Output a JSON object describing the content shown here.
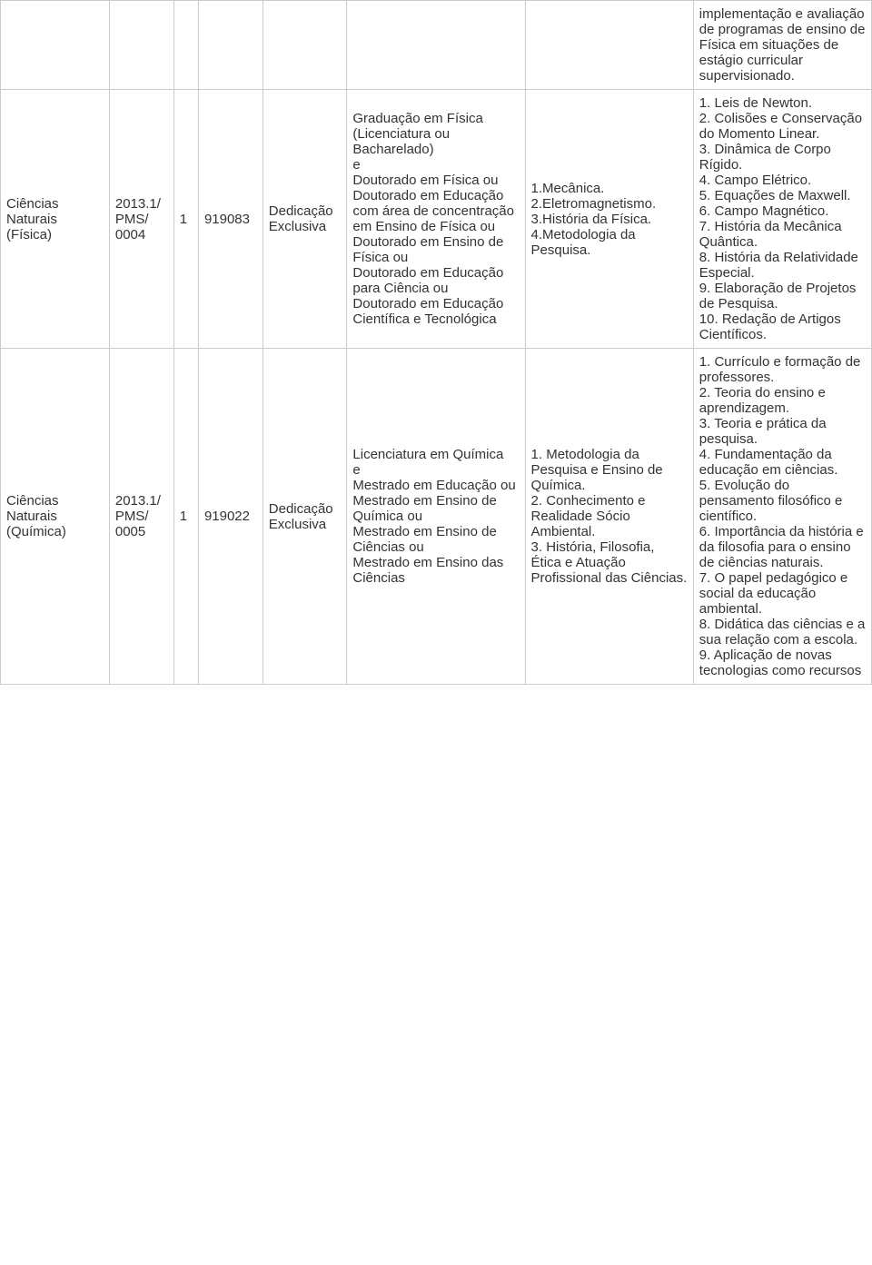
{
  "rows": [
    {
      "c0": "",
      "c1": "",
      "c2": "",
      "c3": "",
      "c4": "",
      "c5": "",
      "c6": "",
      "c7": "implementação e avaliação de programas de ensino de Física em situações de estágio curricular supervisionado."
    },
    {
      "c0": "Ciências Naturais (Física)",
      "c1": "2013.1/ PMS/ 0004",
      "c2": "1",
      "c3": "919083",
      "c4": "Dedicação Exclusiva",
      "c5": "Graduação em Física (Licenciatura ou Bacharelado)\ne\nDoutorado em Física ou\nDoutorado em Educação com área de concentração em Ensino de Física ou Doutorado em Ensino de Física ou\nDoutorado em Educação para Ciência ou\nDoutorado em Educação Científica e Tecnológica",
      "c6": "1.Mecânica.\n2.Eletromagnetismo.\n3.História da Física.\n4.Metodologia da Pesquisa.",
      "c7": "1. Leis de Newton.\n2. Colisões e Conservação do Momento Linear.\n3. Dinâmica de Corpo Rígido.\n4. Campo Elétrico.\n5. Equações de Maxwell.\n6. Campo Magnético.\n7. História da Mecânica Quântica.\n8. História da Relatividade Especial.\n9. Elaboração de Projetos de Pesquisa.\n10. Redação de Artigos Científicos."
    },
    {
      "c0": "Ciências Naturais (Química)",
      "c1": "2013.1/ PMS/ 0005",
      "c2": "1",
      "c3": "919022",
      "c4": "Dedicação Exclusiva",
      "c5": "Licenciatura em Química\ne\nMestrado em Educação ou\nMestrado em Ensino de Química ou\nMestrado em Ensino de Ciências ou\nMestrado em Ensino das Ciências",
      "c6": "1. Metodologia da Pesquisa e Ensino de Química.\n2. Conhecimento e Realidade Sócio Ambiental.\n3. História, Filosofia, Ética e Atuação Profissional das Ciências.",
      "c7": "1. Currículo e formação de professores.\n2. Teoria do ensino e aprendizagem.\n3. Teoria e prática da pesquisa.\n4. Fundamentação da educação em ciências.\n5. Evolução do pensamento filosófico e científico.\n6. Importância da história e da filosofia para o ensino de ciências naturais.\n7. O papel pedagógico e social da educação ambiental.\n8. Didática das ciências e a sua relação com a escola.\n9. Aplicação de novas tecnologias como recursos"
    }
  ]
}
